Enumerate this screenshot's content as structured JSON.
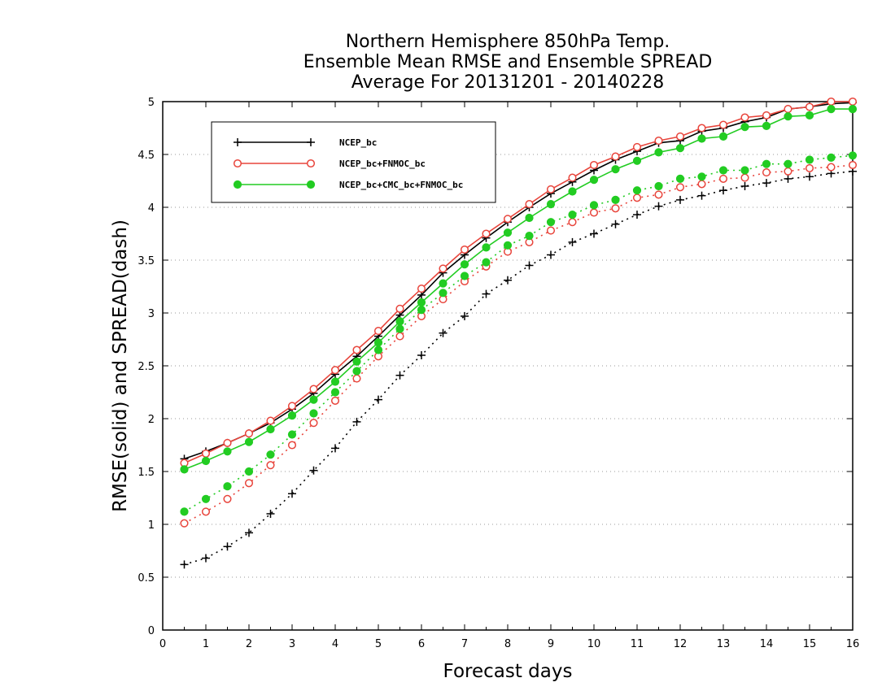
{
  "chart_data": {
    "type": "line",
    "title": [
      "Northern Hemisphere 850hPa Temp.",
      "Ensemble Mean RMSE and Ensemble SPREAD",
      "Average For 20131201 - 20140228"
    ],
    "xlabel": "Forecast days",
    "ylabel": "RMSE(solid) and SPREAD(dash)",
    "xlim": [
      0,
      16
    ],
    "ylim": [
      0,
      5
    ],
    "xticks": [
      "0",
      "1",
      "2",
      "3",
      "4",
      "5",
      "6",
      "7",
      "8",
      "9",
      "10",
      "11",
      "12",
      "13",
      "14",
      "15",
      "16"
    ],
    "yticks": [
      "0",
      "0.5",
      "1",
      "1.5",
      "2",
      "2.5",
      "3",
      "3.5",
      "4",
      "4.5",
      "5"
    ],
    "grid": "horizontal dotted",
    "legend_position": "top-left",
    "x": [
      0.5,
      1,
      1.5,
      2,
      2.5,
      3,
      3.5,
      4,
      4.5,
      5,
      5.5,
      6,
      6.5,
      7,
      7.5,
      8,
      8.5,
      9,
      9.5,
      10,
      10.5,
      11,
      11.5,
      12,
      12.5,
      13,
      13.5,
      14,
      14.5,
      15,
      15.5,
      16
    ],
    "series": [
      {
        "name": "NCEP_bc",
        "color": "#000000",
        "marker": "plus",
        "rmse": [
          1.62,
          1.69,
          1.77,
          1.86,
          1.96,
          2.09,
          2.24,
          2.42,
          2.59,
          2.78,
          2.98,
          3.17,
          3.38,
          3.55,
          3.71,
          3.86,
          4.0,
          4.13,
          4.24,
          4.35,
          4.45,
          4.53,
          4.61,
          4.63,
          4.72,
          4.75,
          4.81,
          4.85,
          4.93,
          4.95,
          4.98,
          4.99
        ],
        "spread": [
          0.62,
          0.68,
          0.79,
          0.92,
          1.1,
          1.29,
          1.51,
          1.72,
          1.97,
          2.18,
          2.41,
          2.6,
          2.81,
          2.97,
          3.18,
          3.31,
          3.45,
          3.55,
          3.67,
          3.75,
          3.84,
          3.93,
          4.01,
          4.07,
          4.11,
          4.16,
          4.2,
          4.23,
          4.27,
          4.29,
          4.32,
          4.34
        ]
      },
      {
        "name": "NCEP_bc+FNMOC_bc",
        "color": "#e8453c",
        "marker": "open-circle",
        "rmse": [
          1.58,
          1.67,
          1.77,
          1.86,
          1.98,
          2.12,
          2.28,
          2.46,
          2.65,
          2.83,
          3.04,
          3.23,
          3.42,
          3.6,
          3.75,
          3.89,
          4.03,
          4.17,
          4.28,
          4.4,
          4.48,
          4.57,
          4.63,
          4.67,
          4.75,
          4.78,
          4.85,
          4.87,
          4.93,
          4.95,
          5.0,
          5.0
        ],
        "spread": [
          1.01,
          1.12,
          1.24,
          1.39,
          1.56,
          1.75,
          1.96,
          2.17,
          2.38,
          2.59,
          2.78,
          2.97,
          3.13,
          3.3,
          3.44,
          3.58,
          3.67,
          3.78,
          3.86,
          3.95,
          3.99,
          4.09,
          4.12,
          4.19,
          4.22,
          4.27,
          4.28,
          4.33,
          4.34,
          4.37,
          4.38,
          4.4
        ]
      },
      {
        "name": "NCEP_bc+CMC_bc+FNMOC_bc",
        "color": "#22cc22",
        "marker": "filled-circle",
        "rmse": [
          1.52,
          1.6,
          1.69,
          1.78,
          1.9,
          2.03,
          2.18,
          2.35,
          2.54,
          2.72,
          2.92,
          3.1,
          3.28,
          3.46,
          3.62,
          3.76,
          3.9,
          4.03,
          4.15,
          4.26,
          4.36,
          4.44,
          4.52,
          4.56,
          4.65,
          4.67,
          4.76,
          4.77,
          4.86,
          4.87,
          4.93,
          4.93
        ],
        "spread": [
          1.12,
          1.24,
          1.36,
          1.5,
          1.66,
          1.85,
          2.05,
          2.25,
          2.45,
          2.65,
          2.85,
          3.03,
          3.19,
          3.35,
          3.48,
          3.64,
          3.73,
          3.86,
          3.93,
          4.02,
          4.07,
          4.16,
          4.2,
          4.27,
          4.29,
          4.35,
          4.35,
          4.41,
          4.41,
          4.45,
          4.47,
          4.49
        ]
      }
    ]
  }
}
